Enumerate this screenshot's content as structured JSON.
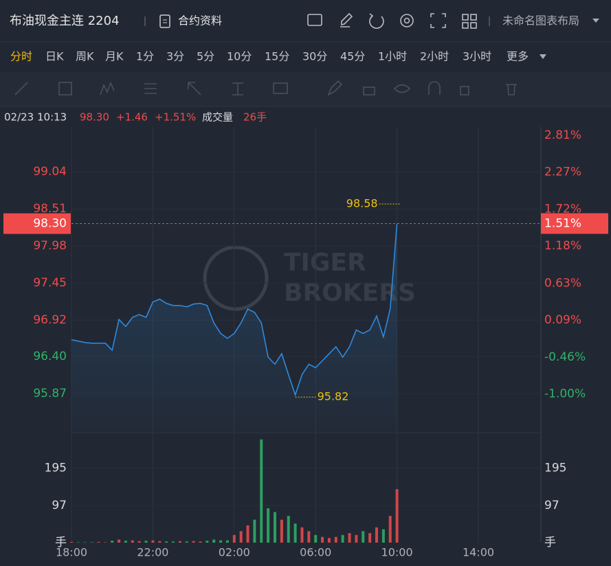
{
  "header": {
    "title": "布油现金主连 2204",
    "contract_info": "合约资料",
    "layout_name": "未命名图表布局"
  },
  "timeframes": {
    "items": [
      "分时",
      "日K",
      "周K",
      "月K",
      "1分",
      "3分",
      "5分",
      "10分",
      "15分",
      "30分",
      "45分",
      "1小时",
      "2小时",
      "3小时",
      "更多"
    ],
    "active": 0
  },
  "quote": {
    "time": "02/23 10:13",
    "price": "98.30",
    "change": "+1.46",
    "change_pct": "+1.51%",
    "volume_label": "成交量",
    "volume": "26手"
  },
  "chart_data": {
    "type": "line",
    "watermark": [
      "TIGER",
      "BROKERS"
    ],
    "categories": [
      "18:00",
      null,
      null,
      null,
      null,
      null,
      null,
      null,
      null,
      null,
      null,
      null,
      "22:00",
      null,
      null,
      null,
      null,
      null,
      null,
      null,
      null,
      null,
      null,
      null,
      "02:00",
      null,
      null,
      null,
      null,
      null,
      null,
      null,
      null,
      null,
      null,
      null,
      "06:00",
      null,
      null,
      null,
      null,
      null,
      null,
      null,
      null,
      null,
      null,
      null,
      "10:00",
      null,
      null,
      null,
      null,
      null,
      null,
      null,
      null,
      null,
      null,
      null,
      "14:00",
      null,
      null,
      null,
      null,
      null,
      null,
      null,
      null,
      null
    ],
    "values": [
      96.64,
      96.62,
      96.6,
      96.59,
      96.59,
      96.59,
      96.49,
      96.93,
      96.83,
      96.96,
      97.0,
      96.96,
      97.18,
      97.22,
      97.16,
      97.13,
      97.13,
      97.11,
      97.15,
      97.16,
      97.13,
      96.88,
      96.73,
      96.66,
      96.73,
      96.88,
      97.08,
      97.03,
      96.88,
      96.39,
      96.29,
      96.44,
      96.14,
      95.85,
      96.14,
      96.29,
      96.24,
      96.34,
      96.44,
      96.54,
      96.39,
      96.54,
      96.78,
      96.73,
      96.78,
      96.98,
      96.68,
      97.08,
      98.3,
      null,
      null,
      null,
      null,
      null,
      null,
      null,
      null,
      null,
      null,
      null,
      null,
      null,
      null,
      null,
      null,
      null,
      null,
      null,
      null,
      null
    ],
    "color": "#2f8fe8",
    "up_color": "#f04b4b",
    "down_color": "#2fb36a",
    "high": 98.58,
    "low": 95.82,
    "price_line": {
      "value": 98.3,
      "label": "98.30"
    },
    "price_line_pct": {
      "value": 1.51,
      "label": "1.51%"
    },
    "ylim": [
      95.33,
      99.68
    ],
    "yticks": [
      95.87,
      {
        "value": 96.4,
        "label": "96.40"
      },
      96.92,
      97.45,
      97.98,
      98.51,
      99.04
    ],
    "y2lim": [
      -1.55,
      2.93
    ],
    "y2ticks": [
      {
        "value": 2.81,
        "label": "2.81%"
      },
      {
        "value": 2.27,
        "label": "2.27%"
      },
      {
        "value": 1.72,
        "label": "1.72%"
      },
      {
        "value": 1.18,
        "label": "1.18%"
      },
      {
        "value": 0.63,
        "label": "0.63%"
      },
      {
        "value": 0.09,
        "label": "0.09%"
      },
      {
        "value": -0.46,
        "label": "-0.46%"
      },
      {
        "value": -1.0,
        "label": "-1.00%"
      }
    ],
    "grid": true,
    "volume": {
      "values": [
        2,
        1,
        1,
        1,
        2,
        1,
        5,
        8,
        5,
        6,
        4,
        5,
        6,
        4,
        3,
        3,
        4,
        3,
        4,
        3,
        5,
        8,
        6,
        6,
        20,
        30,
        45,
        60,
        270,
        90,
        80,
        60,
        70,
        50,
        40,
        30,
        20,
        15,
        12,
        15,
        20,
        25,
        20,
        30,
        25,
        40,
        35,
        70,
        140,
        null,
        null,
        null,
        null,
        null,
        null,
        null,
        null,
        null,
        null,
        null,
        null,
        null,
        null,
        null,
        null,
        null,
        null,
        null,
        null,
        null
      ],
      "ylim": [
        0,
        284
      ],
      "yticks": [
        97,
        195
      ],
      "unit": "手"
    }
  }
}
